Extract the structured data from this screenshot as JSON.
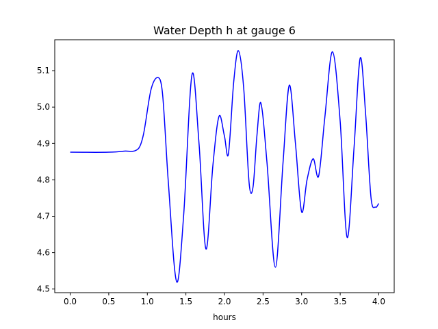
{
  "chart_data": {
    "type": "line",
    "title": "Water Depth h at gauge 6",
    "xlabel": "hours",
    "ylabel": "",
    "xlim": [
      -0.2,
      4.2
    ],
    "ylim": [
      4.49,
      5.185
    ],
    "xticks": [
      0.0,
      0.5,
      1.0,
      1.5,
      2.0,
      2.5,
      3.0,
      3.5,
      4.0
    ],
    "xtick_labels": [
      "0.0",
      "0.5",
      "1.0",
      "1.5",
      "2.0",
      "2.5",
      "3.0",
      "3.5",
      "4.0"
    ],
    "yticks": [
      4.5,
      4.6,
      4.7,
      4.8,
      4.9,
      5.0,
      5.1
    ],
    "ytick_labels": [
      "4.5",
      "4.6",
      "4.7",
      "4.8",
      "4.9",
      "5.0",
      "5.1"
    ],
    "grid": false,
    "series": [
      {
        "color": "#0000ff",
        "x": [
          0.0,
          0.5,
          0.7,
          0.88,
          0.95,
          1.05,
          1.15,
          1.2,
          1.27,
          1.38,
          1.47,
          1.58,
          1.67,
          1.76,
          1.85,
          1.93,
          2.0,
          2.05,
          2.12,
          2.18,
          2.25,
          2.32,
          2.37,
          2.42,
          2.47,
          2.55,
          2.66,
          2.76,
          2.84,
          2.92,
          3.0,
          3.07,
          3.15,
          3.22,
          3.3,
          3.4,
          3.5,
          3.59,
          3.68,
          3.76,
          3.83,
          3.9,
          3.96,
          4.0
        ],
        "y": [
          4.876,
          4.876,
          4.879,
          4.885,
          4.925,
          5.05,
          5.08,
          5.03,
          4.8,
          4.52,
          4.7,
          5.09,
          4.9,
          4.61,
          4.84,
          4.975,
          4.92,
          4.87,
          5.07,
          5.155,
          5.05,
          4.79,
          4.78,
          4.92,
          5.012,
          4.85,
          4.56,
          4.85,
          5.06,
          4.9,
          4.712,
          4.8,
          4.858,
          4.81,
          4.97,
          5.152,
          4.96,
          4.642,
          4.89,
          5.135,
          4.98,
          4.75,
          4.725,
          4.735
        ]
      }
    ]
  }
}
